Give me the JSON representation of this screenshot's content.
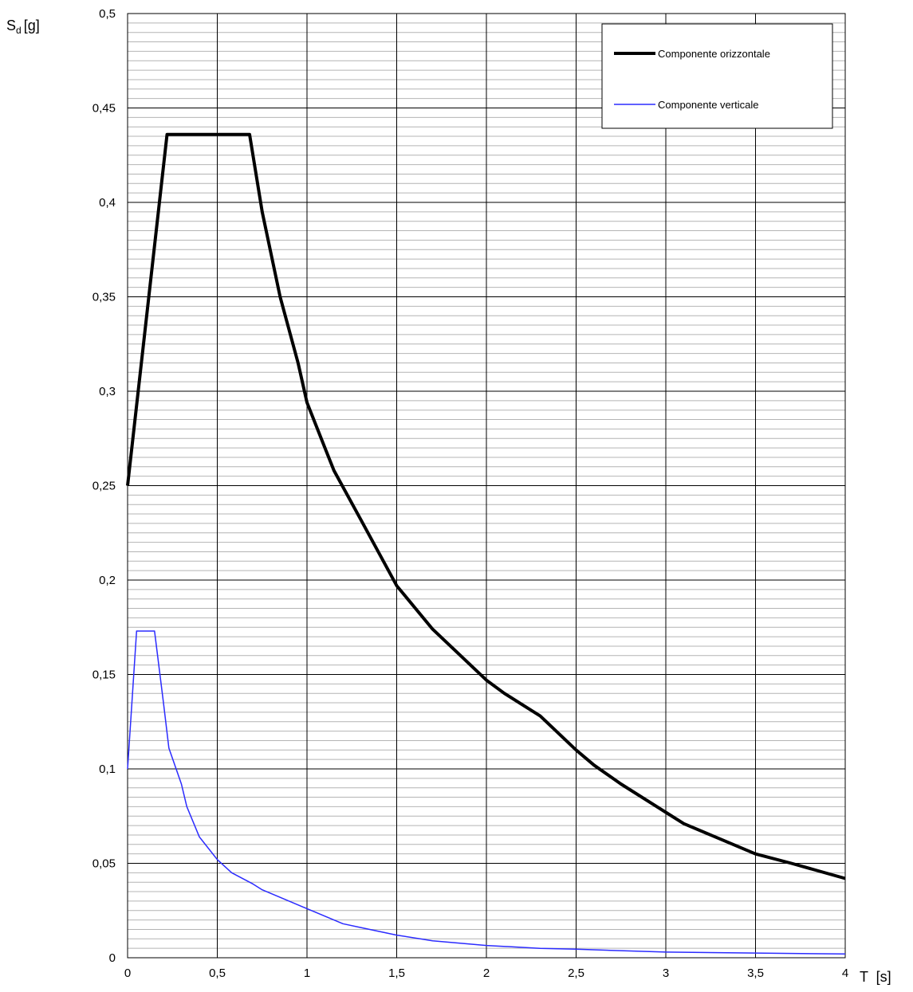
{
  "chart_data": {
    "type": "line",
    "title": "",
    "xlabel": "T  [s]",
    "ylabel": {
      "main": "S",
      "sub": "d",
      "unit": "[g]"
    },
    "xlim": [
      0,
      4
    ],
    "ylim": [
      0,
      0.5
    ],
    "x_ticks": [
      "0",
      "0,5",
      "1",
      "1,5",
      "2",
      "2,5",
      "3",
      "3,5",
      "4"
    ],
    "y_ticks": [
      "0",
      "0,05",
      "0,1",
      "0,15",
      "0,2",
      "0,25",
      "0,3",
      "0,35",
      "0,4",
      "0,45",
      "0,5"
    ],
    "grid": {
      "major": true,
      "minor_y_step": 0.005
    },
    "legend_position": "top-right",
    "series": [
      {
        "name": "Componente orizzontale",
        "color": "#000000",
        "style": "thick",
        "points": [
          [
            0,
            0.25
          ],
          [
            0.22,
            0.436
          ],
          [
            0.68,
            0.436
          ],
          [
            0.75,
            0.395
          ],
          [
            0.85,
            0.35
          ],
          [
            0.95,
            0.315
          ],
          [
            1.0,
            0.294
          ],
          [
            1.1,
            0.27
          ],
          [
            1.15,
            0.258
          ],
          [
            1.3,
            0.232
          ],
          [
            1.5,
            0.197
          ],
          [
            1.7,
            0.174
          ],
          [
            2.0,
            0.147
          ],
          [
            2.1,
            0.14
          ],
          [
            2.3,
            0.128
          ],
          [
            2.5,
            0.11
          ],
          [
            2.6,
            0.102
          ],
          [
            2.75,
            0.092
          ],
          [
            3.0,
            0.077
          ],
          [
            3.1,
            0.071
          ],
          [
            3.3,
            0.063
          ],
          [
            3.5,
            0.055
          ],
          [
            3.7,
            0.05
          ],
          [
            3.85,
            0.046
          ],
          [
            4.0,
            0.042
          ]
        ]
      },
      {
        "name": "Componente verticale",
        "color": "#2b2bff",
        "style": "thin",
        "points": [
          [
            0,
            0.1
          ],
          [
            0.05,
            0.173
          ],
          [
            0.15,
            0.173
          ],
          [
            0.2,
            0.135
          ],
          [
            0.23,
            0.111
          ],
          [
            0.3,
            0.092
          ],
          [
            0.33,
            0.08
          ],
          [
            0.4,
            0.064
          ],
          [
            0.5,
            0.052
          ],
          [
            0.58,
            0.045
          ],
          [
            0.7,
            0.039
          ],
          [
            0.75,
            0.036
          ],
          [
            0.85,
            0.032
          ],
          [
            1.0,
            0.026
          ],
          [
            1.2,
            0.018
          ],
          [
            1.3,
            0.016
          ],
          [
            1.5,
            0.012
          ],
          [
            1.7,
            0.009
          ],
          [
            2.0,
            0.0065
          ],
          [
            2.3,
            0.005
          ],
          [
            2.5,
            0.0045
          ],
          [
            3.0,
            0.003
          ],
          [
            3.5,
            0.0025
          ],
          [
            4.0,
            0.002
          ]
        ]
      }
    ]
  }
}
